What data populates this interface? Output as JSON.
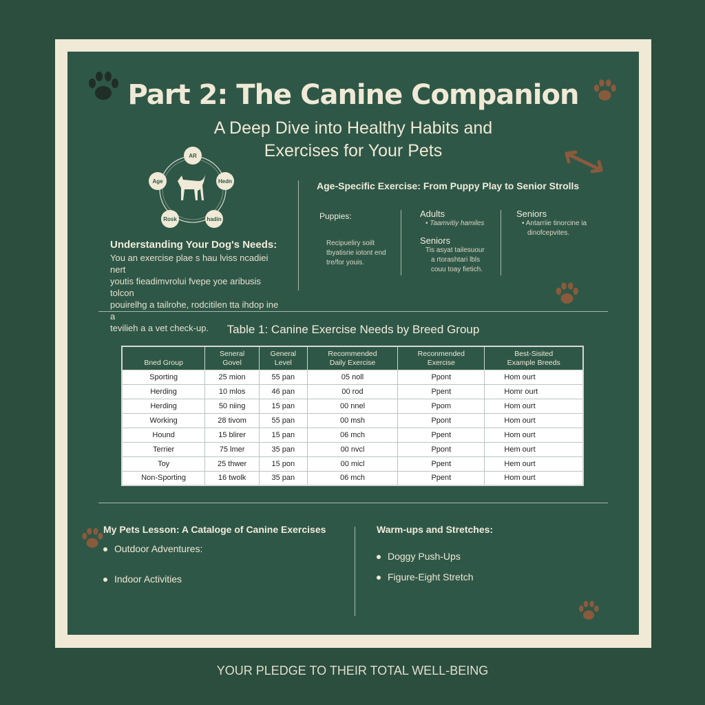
{
  "title": "Part 2: The Canine Companion",
  "subtitle_line1": "A Deep Dive into Healthy Habits and",
  "subtitle_line2": "Exercises for Your Pets",
  "diagram_nodes": [
    "AR",
    "Hedn",
    "hadin",
    "Rosk",
    "Age"
  ],
  "needs": {
    "heading": "Understanding Your Dog's Needs:",
    "lines": [
      "You an exercise plae s hau lviss ncadiei nert",
      "youtis fieadimvrolui fvepe yoe aribusis tolcon",
      "pouirelhg a tailrohe, rodcitilen tta ihdop ine a",
      "tevilieh a a vet check-up."
    ]
  },
  "age": {
    "heading": "Age-Specific Exercise: From Puppy Play to Senior Strolls",
    "puppies": {
      "title": "Puppies:",
      "lines": [
        "Recipueliry soilt",
        "tbyatisrie iotont end",
        "tre/for youis."
      ]
    },
    "adults": {
      "title": "Adults",
      "lines": [
        "Taamvitiy hamiles"
      ]
    },
    "seniors_mid": {
      "title": "Seniors",
      "lines": [
        "Tis asyat tailesuour",
        "a rtorashtari lbls",
        "couu toay fietich."
      ]
    },
    "seniors": {
      "title": "Seniors",
      "lines": [
        "Antarriie tinorcine ia",
        "dinofcepvites."
      ]
    }
  },
  "table": {
    "caption": "Table 1: Canine Exercise Needs by Breed Group",
    "headers": [
      [
        "",
        "Bned Group"
      ],
      [
        "Seneral",
        "Govel"
      ],
      [
        "General",
        "Level"
      ],
      [
        "Recommended",
        "Daily Exercise"
      ],
      [
        "Reconmended",
        "Exercise"
      ],
      [
        "Best-Sisited",
        "Example Breeds"
      ]
    ],
    "rows": [
      [
        "Sporting",
        "25 mion",
        "55 pan",
        "05 noll",
        "Ppont",
        "Hom ourt"
      ],
      [
        "Herding",
        "10 mlos",
        "46 pan",
        "00 rod",
        "Ppent",
        "Homr ourt"
      ],
      [
        "Herding",
        "50 niing",
        "15 pan",
        "00 nnel",
        "Ppom",
        "Hom ourt"
      ],
      [
        "Working",
        "28 tivom",
        "55 pan",
        "00 msh",
        "Ppont",
        "Hom ourt"
      ],
      [
        "Hound",
        "15 blirer",
        "15 pan",
        "06 mch",
        "Ppent",
        "Hom ourt"
      ],
      [
        "Terrier",
        "75 lmer",
        "35 pan",
        "00 nvcl",
        "Ppont",
        "Hem ourt"
      ],
      [
        "Toy",
        "25 thwer",
        "15 pon",
        "00 micl",
        "Ppent",
        "Hem ourt"
      ],
      [
        "Non-Sporting",
        "16 twolk",
        "35 pan",
        "06 mch",
        "Ppent",
        "Hom ourt"
      ]
    ]
  },
  "catalog": {
    "heading": "My Pets Lesson: A Catalogе of Canine Exercises",
    "items": [
      "Outdoor Adventures:",
      "Indoor Activities"
    ]
  },
  "warmups": {
    "heading": "Warm-ups and Stretches:",
    "items": [
      "Doggy Push-Ups",
      "Figure-Eight Stretch"
    ]
  },
  "footer": "YOUR PLEDGE TO THEIR TOTAL WELL-BEING",
  "colors": {
    "background": "#2b4e3f",
    "panel": "#2f5747",
    "frame": "#efe9d6",
    "paw_brown": "#8a5a3c"
  }
}
